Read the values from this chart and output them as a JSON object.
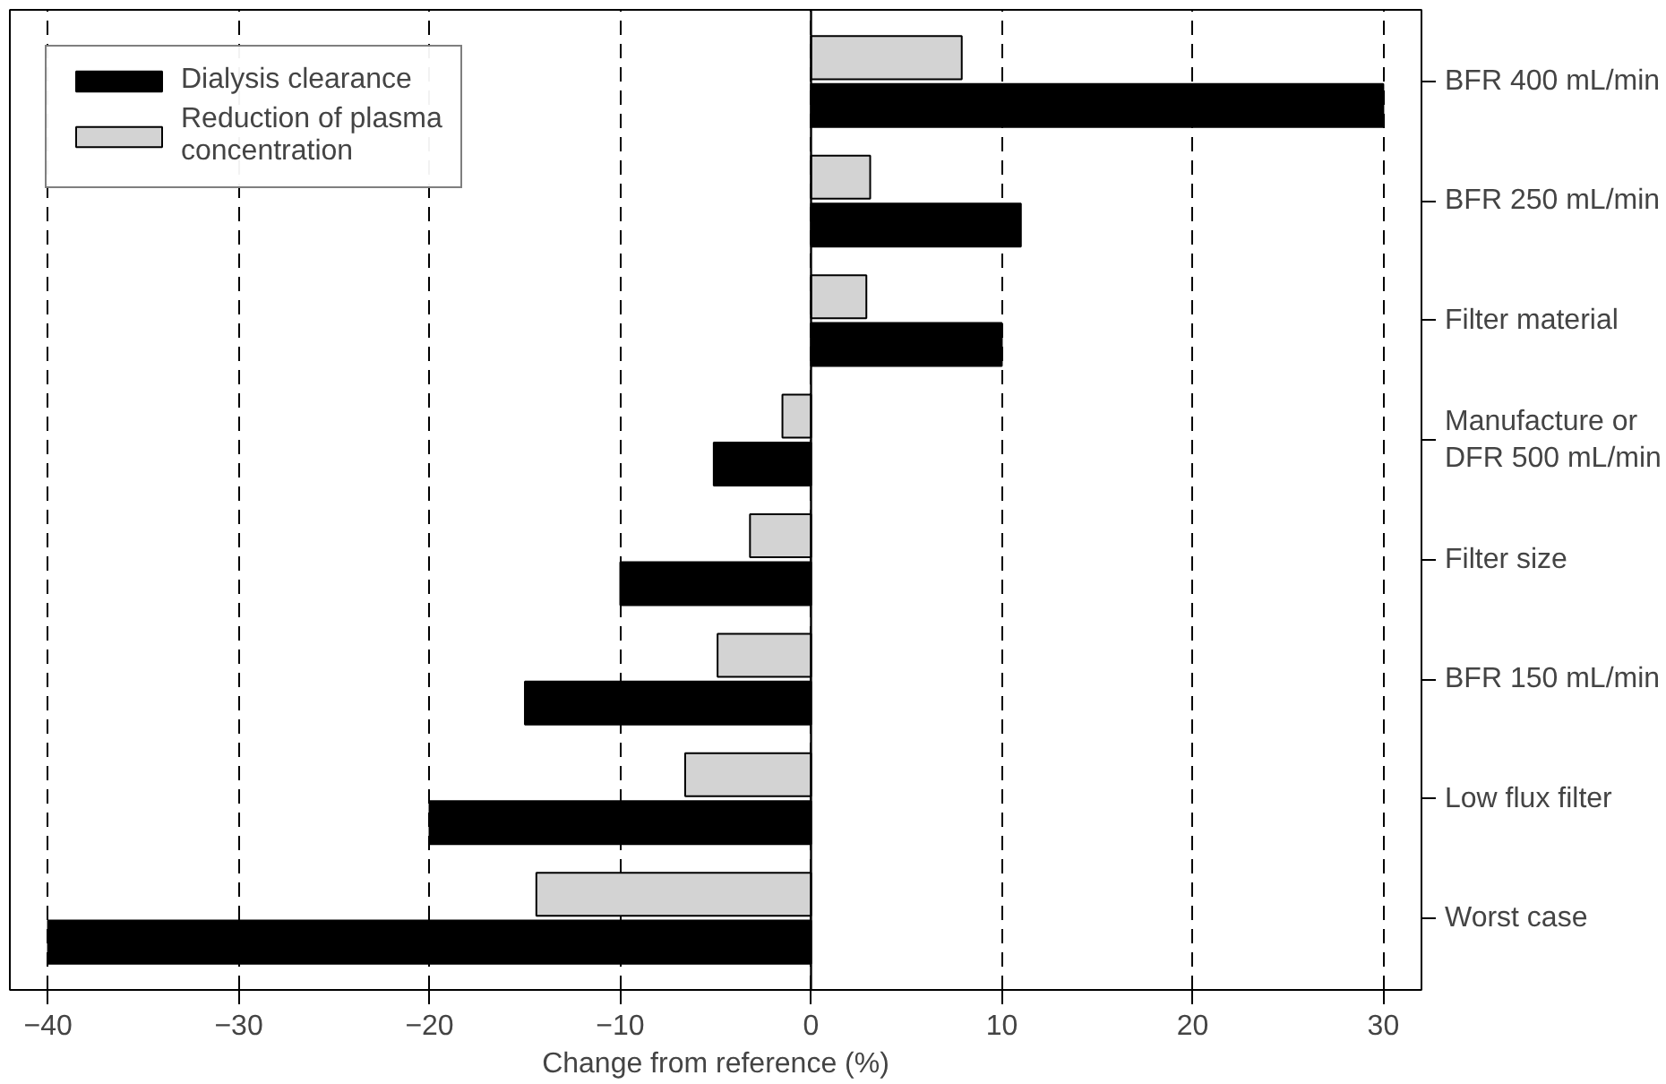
{
  "chart_data": {
    "type": "bar",
    "orientation": "horizontal",
    "xlabel": "Change from reference (%)",
    "categories": [
      "BFR 400 mL/min",
      "BFR 250 mL/min",
      "Filter material",
      "Manufacture or\nDFR 500 mL/min",
      "Filter size",
      "BFR 150 mL/min",
      "Low flux filter",
      "Worst case"
    ],
    "series": [
      {
        "name": "Dialysis clearance",
        "color": "#000000",
        "values": [
          30,
          11,
          10,
          -5.1,
          -10,
          -15,
          -20,
          -40
        ]
      },
      {
        "name": "Reduction of plasma\nconcentration",
        "color": "#d3d3d3",
        "values": [
          7.9,
          3.1,
          2.9,
          -1.5,
          -3.2,
          -4.9,
          -6.6,
          -14.4
        ]
      }
    ],
    "xlim": [
      -42,
      32
    ],
    "xticks": [
      -40,
      -30,
      -20,
      -10,
      0,
      10,
      20,
      30
    ],
    "grid": "x",
    "legend": "top left"
  }
}
